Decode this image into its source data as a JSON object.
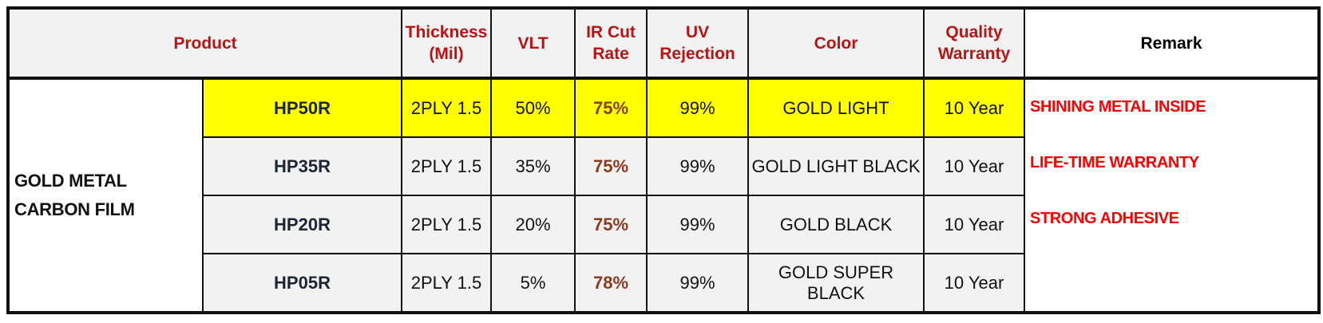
{
  "header": {
    "product": "Product",
    "thickness": "Thickness (Mil)",
    "vlt": "VLT",
    "ir_cut_rate": "IR Cut Rate",
    "uv_rejection": "UV Rejection",
    "color": "Color",
    "quality_warranty": "Quality Warranty",
    "remark": "Remark"
  },
  "family": "GOLD METAL CARBON FILM",
  "rows": [
    {
      "model": "HP50R",
      "thickness": "2PLY 1.5",
      "vlt": "50%",
      "ir": "75%",
      "uv": "99%",
      "color": "GOLD LIGHT",
      "warranty": "10 Year"
    },
    {
      "model": "HP35R",
      "thickness": "2PLY 1.5",
      "vlt": "35%",
      "ir": "75%",
      "uv": "99%",
      "color": "GOLD LIGHT BLACK",
      "warranty": "10 Year"
    },
    {
      "model": "HP20R",
      "thickness": "2PLY 1.5",
      "vlt": "20%",
      "ir": "75%",
      "uv": "99%",
      "color": "GOLD BLACK",
      "warranty": "10 Year"
    },
    {
      "model": "HP05R",
      "thickness": "2PLY 1.5",
      "vlt": "5%",
      "ir": "78%",
      "uv": "99%",
      "color": "GOLD SUPER BLACK",
      "warranty": "10 Year"
    }
  ],
  "remarks": [
    "SHINING METAL INSIDE",
    "LIFE-TIME WARRANTY",
    "STRONG ADHESIVE"
  ],
  "colors": {
    "highlight": "#ffff00",
    "header_text": "#b81414",
    "accent_red": "#ff0000",
    "ir_text": "#8b3a1c"
  }
}
